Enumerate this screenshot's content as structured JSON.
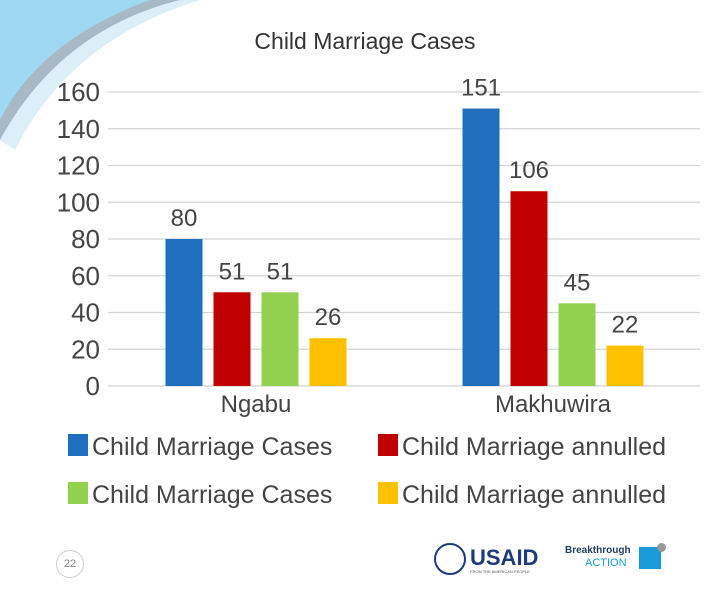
{
  "chart_data": {
    "type": "bar",
    "title": "Child Marriage Cases",
    "categories": [
      "Ngabu",
      "Makhuwira"
    ],
    "series": [
      {
        "name": "Child Marriage Cases",
        "color": "#1f6fbf",
        "values": [
          80,
          151
        ]
      },
      {
        "name": "Child Marriage annulled",
        "color": "#c00000",
        "values": [
          51,
          106
        ]
      },
      {
        "name": "Child Marriage Cases",
        "color": "#92d050",
        "values": [
          51,
          45
        ]
      },
      {
        "name": "Child Marriage annulled",
        "color": "#ffc000",
        "values": [
          26,
          22
        ]
      }
    ],
    "ylim": [
      0,
      160
    ],
    "yticks": [
      0,
      20,
      40,
      60,
      80,
      100,
      120,
      140,
      160
    ],
    "grid": true,
    "legend": "bottom",
    "xlabel": "",
    "ylabel": ""
  },
  "slide": {
    "page_number": "22"
  },
  "logos": {
    "usaid": "USAID",
    "usaid_tagline": "FROM THE AMERICAN PEOPLE",
    "breakthrough": "Breakthrough",
    "action": "ACTION"
  }
}
